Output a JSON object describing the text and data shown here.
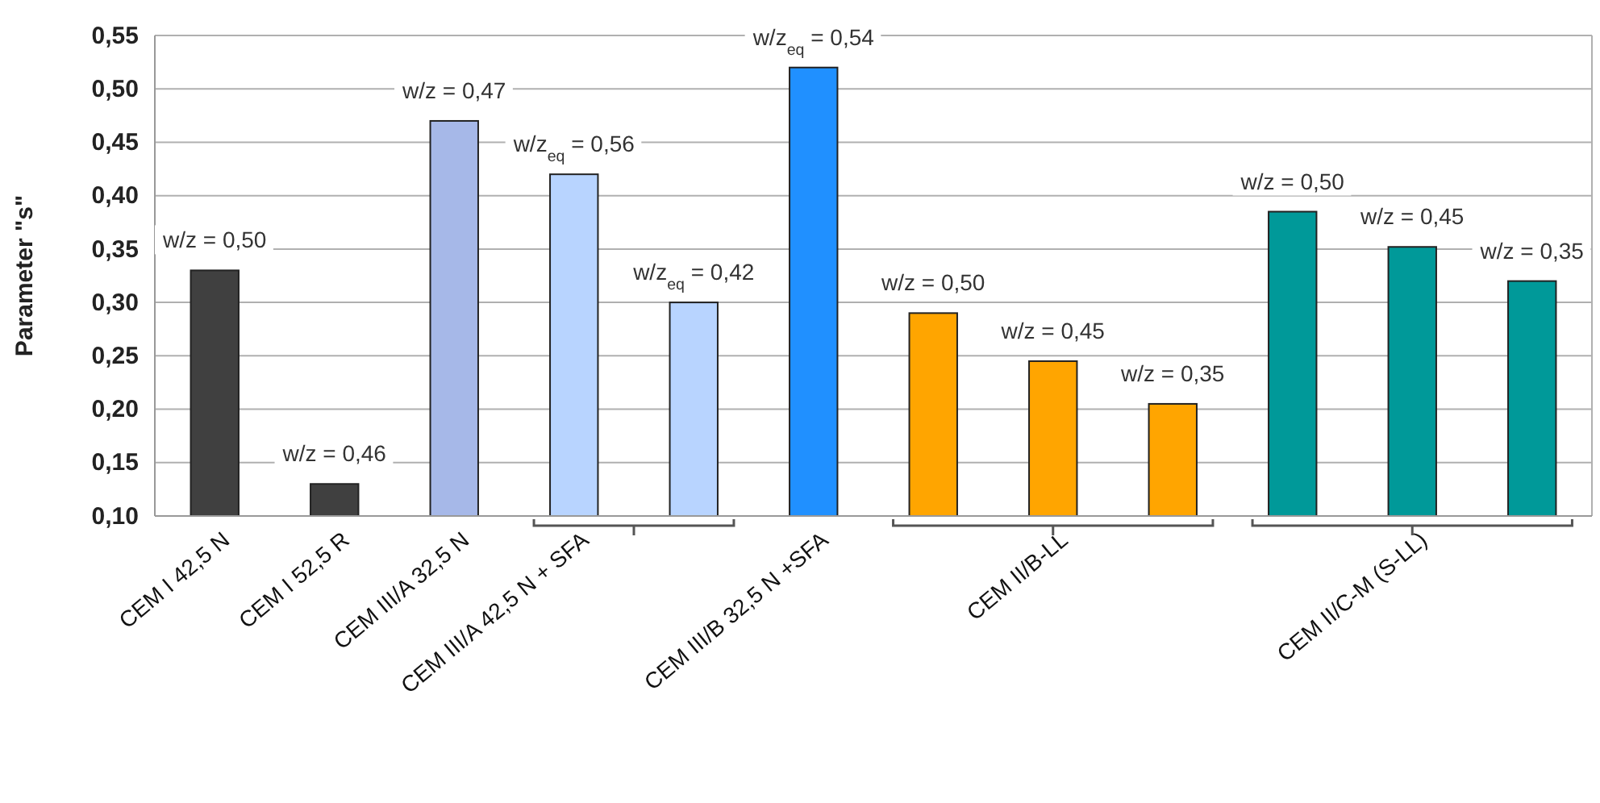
{
  "chart_data": {
    "type": "bar",
    "ylabel": "Parameter \"s\"",
    "categories": [
      "CEM I 42,5 N",
      "CEM I 52,5 R",
      "CEM III/A 32,5 N",
      "CEM III/A 42,5 N + SFA",
      null,
      "CEM III/B 32,5 N +SFA",
      null,
      "CEM II/B-LL",
      null,
      null,
      "CEM II/C-M (S-LL)",
      null
    ],
    "values": [
      0.33,
      0.13,
      0.47,
      0.42,
      0.3,
      0.52,
      0.29,
      0.245,
      0.205,
      0.385,
      0.352,
      0.32
    ],
    "colors": [
      "#404040",
      "#404040",
      "#a6b8e8",
      "#b8d4ff",
      "#b8d4ff",
      "#2090ff",
      "#ffa500",
      "#ffa500",
      "#ffa500",
      "#009999",
      "#009999",
      "#009999"
    ],
    "ylim": [
      0.1,
      0.55
    ],
    "yticks": [
      {
        "value": 0.1,
        "label": "0,10"
      },
      {
        "value": 0.15,
        "label": "0,15"
      },
      {
        "value": 0.2,
        "label": "0,20"
      },
      {
        "value": 0.25,
        "label": "0,25"
      },
      {
        "value": 0.3,
        "label": "0,30"
      },
      {
        "value": 0.35,
        "label": "0,35"
      },
      {
        "value": 0.4,
        "label": "0,40"
      },
      {
        "value": 0.45,
        "label": "0,45"
      },
      {
        "value": 0.5,
        "label": "0,50"
      },
      {
        "value": 0.55,
        "label": "0,55"
      }
    ],
    "grid": "y",
    "annotations": [
      {
        "text": "w/z = 0,50",
        "y": 0.33
      },
      {
        "text": "w/z = 0,46",
        "y": 0.13
      },
      {
        "text": "w/z = 0,47",
        "y": 0.47
      },
      {
        "text": "w/z$_{eq}$ = 0,56",
        "y": 0.42
      },
      {
        "text": "w/z$_{eq}$ = 0,42",
        "y": 0.3
      },
      {
        "text": "w/z$_{eq}$ = 0,54",
        "y": 0.52
      },
      {
        "text": "w/z = 0,50",
        "y": 0.29
      },
      {
        "text": "w/z = 0,45",
        "y": 0.245
      },
      {
        "text": "w/z = 0,35",
        "y": 0.205
      },
      {
        "text": "w/z = 0,50",
        "y": 0.385
      },
      {
        "text": "w/z = 0,45",
        "y": 0.352
      },
      {
        "text": "w/z = 0,35",
        "y": 0.32
      }
    ]
  }
}
